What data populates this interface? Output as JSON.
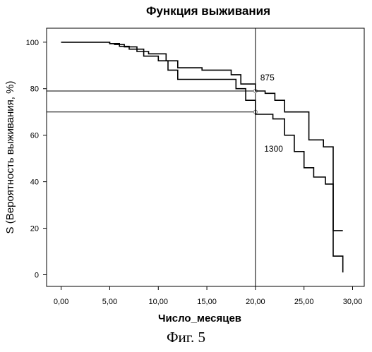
{
  "chart_data": {
    "type": "line",
    "title": "Функция выживания",
    "xlabel": "Число_месяцев",
    "ylabel": "S (Вероятность выживания, %)",
    "xlim": [
      -1.5,
      31.2
    ],
    "ylim": [
      -5,
      106
    ],
    "x_ticks": [
      0,
      5,
      10,
      15,
      20,
      25,
      30
    ],
    "x_tick_labels": [
      "0,00",
      "5,00",
      "10,00",
      "15,00",
      "20,00",
      "25,00",
      "30,00"
    ],
    "y_ticks": [
      0,
      20,
      40,
      60,
      80,
      100
    ],
    "y_tick_labels": [
      "0",
      "20",
      "40",
      "60",
      "80",
      "100"
    ],
    "grid": false,
    "series": [
      {
        "name": "875",
        "step": "post",
        "x": [
          0,
          5,
          5.5,
          6.5,
          7.8,
          9,
          10.8,
          12,
          14.5,
          17.5,
          18.5,
          20,
          21,
          22,
          23,
          25.5,
          27,
          28,
          29
        ],
        "y": [
          100,
          99.4,
          99,
          98,
          96,
          95,
          92,
          89,
          88,
          86,
          82,
          79,
          78,
          75,
          70,
          58,
          55,
          19,
          19
        ]
      },
      {
        "name": "1300",
        "step": "post",
        "x": [
          0,
          5,
          6,
          7,
          8.5,
          10,
          11,
          12,
          18,
          19,
          20,
          21.8,
          23,
          24,
          25,
          26,
          27.2,
          28,
          29
        ],
        "y": [
          100,
          99.4,
          98.2,
          97,
          94,
          92,
          88,
          84,
          80,
          75,
          69,
          67,
          60,
          53,
          46,
          42,
          39,
          8,
          1
        ]
      }
    ],
    "annotations": [
      {
        "type": "vline",
        "x": 20
      },
      {
        "type": "hline",
        "y": 79,
        "x_end": 20
      },
      {
        "type": "hline",
        "y": 70,
        "x_end": 20
      },
      {
        "type": "marker",
        "x": 20,
        "y": 79
      },
      {
        "type": "marker",
        "x": 20,
        "y": 70
      },
      {
        "type": "label",
        "text": "875",
        "x": 20.5,
        "y": 83.5
      },
      {
        "type": "label",
        "text": "1300",
        "x": 20.9,
        "y": 53
      }
    ]
  },
  "caption": "Фиг. 5"
}
